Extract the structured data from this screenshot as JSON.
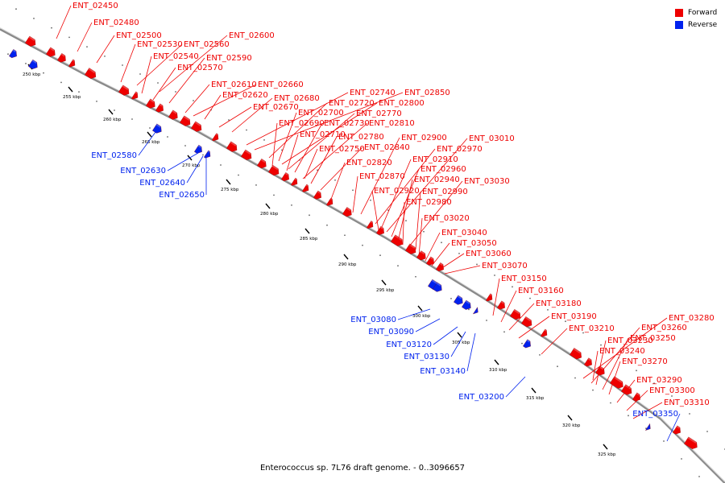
{
  "caption": "Enterococcus sp. 7L76 draft genome. - 0..3096657",
  "legend": [
    {
      "label": "Forward",
      "color": "#ee0000"
    },
    {
      "label": "Reverse",
      "color": "#0022ee"
    }
  ],
  "colors": {
    "forward": "#ee0000",
    "reverse": "#0022ee",
    "backbone": "#8a8a8a"
  },
  "scale_ticks": [
    "250 kbp",
    "255 kbp",
    "260 kbp",
    "265 kbp",
    "270 kbp",
    "275 kbp",
    "280 kbp",
    "285 kbp",
    "290 kbp",
    "295 kbp",
    "300 kbp",
    "305 kbp",
    "310 kbp",
    "315 kbp",
    "320 kbp",
    "325 kbp"
  ],
  "forward_genes": [
    "ENT_02450",
    "ENT_02480",
    "ENT_02500",
    "ENT_02530",
    "ENT_02560",
    "ENT_02600",
    "ENT_02540",
    "ENT_02590",
    "ENT_02570",
    "ENT_02610",
    "ENT_02660",
    "ENT_02620",
    "ENT_02680",
    "ENT_02670",
    "ENT_02740",
    "ENT_02850",
    "ENT_02720",
    "ENT_02800",
    "ENT_02700",
    "ENT_02770",
    "ENT_02690",
    "ENT_02730",
    "ENT_02810",
    "ENT_02710",
    "ENT_02780",
    "ENT_02750",
    "ENT_02840",
    "ENT_02820",
    "ENT_02870",
    "ENT_02900",
    "ENT_03010",
    "ENT_02970",
    "ENT_02910",
    "ENT_02960",
    "ENT_02940",
    "ENT_03030",
    "ENT_02920",
    "ENT_02990",
    "ENT_02980",
    "ENT_03020",
    "ENT_03040",
    "ENT_03050",
    "ENT_03060",
    "ENT_03070",
    "ENT_03150",
    "ENT_03160",
    "ENT_03180",
    "ENT_03190",
    "ENT_03210",
    "ENT_03280",
    "ENT_03260",
    "ENT_03230",
    "ENT_03250",
    "ENT_03240",
    "ENT_03270",
    "ENT_03290",
    "ENT_03300",
    "ENT_03310"
  ],
  "reverse_genes": [
    "ENT_02580",
    "ENT_02630",
    "ENT_02640",
    "ENT_02650",
    "ENT_03080",
    "ENT_03090",
    "ENT_03120",
    "ENT_03130",
    "ENT_03140",
    "ENT_03200",
    "ENT_03350"
  ]
}
